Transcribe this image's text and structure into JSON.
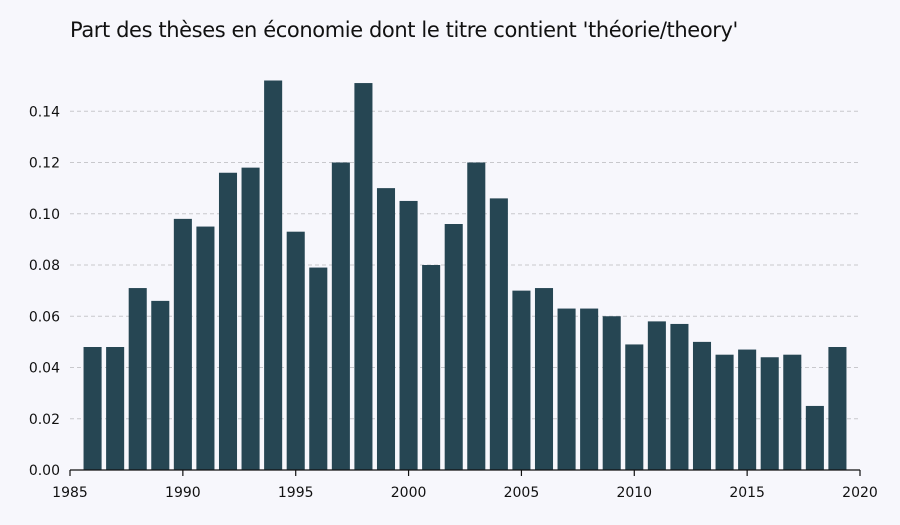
{
  "chart_data": {
    "type": "bar",
    "title": "Part des thèses en économie dont le titre contient 'théorie/theory'",
    "xlabel": "",
    "ylabel": "",
    "x": [
      1986,
      1987,
      1988,
      1989,
      1990,
      1991,
      1992,
      1993,
      1994,
      1995,
      1996,
      1997,
      1998,
      1999,
      2000,
      2001,
      2002,
      2003,
      2004,
      2005,
      2006,
      2007,
      2008,
      2009,
      2010,
      2011,
      2012,
      2013,
      2014,
      2015,
      2016,
      2017,
      2018,
      2019
    ],
    "values": [
      0.048,
      0.048,
      0.071,
      0.066,
      0.098,
      0.095,
      0.116,
      0.118,
      0.152,
      0.093,
      0.079,
      0.12,
      0.151,
      0.11,
      0.105,
      0.08,
      0.096,
      0.12,
      0.106,
      0.07,
      0.071,
      0.063,
      0.063,
      0.06,
      0.049,
      0.058,
      0.057,
      0.05,
      0.045,
      0.047,
      0.044,
      0.045,
      0.025,
      0.048
    ],
    "xlim": [
      1985,
      2020
    ],
    "ylim": [
      0,
      0.16
    ],
    "xticks": [
      "1985",
      "1990",
      "1995",
      "2000",
      "2005",
      "2010",
      "2015",
      "2020"
    ],
    "yticks": [
      "0.00",
      "0.02",
      "0.04",
      "0.06",
      "0.08",
      "0.10",
      "0.12",
      "0.14"
    ],
    "bar_color": "#264653",
    "grid": "horizontal dashed",
    "legend": "none"
  }
}
